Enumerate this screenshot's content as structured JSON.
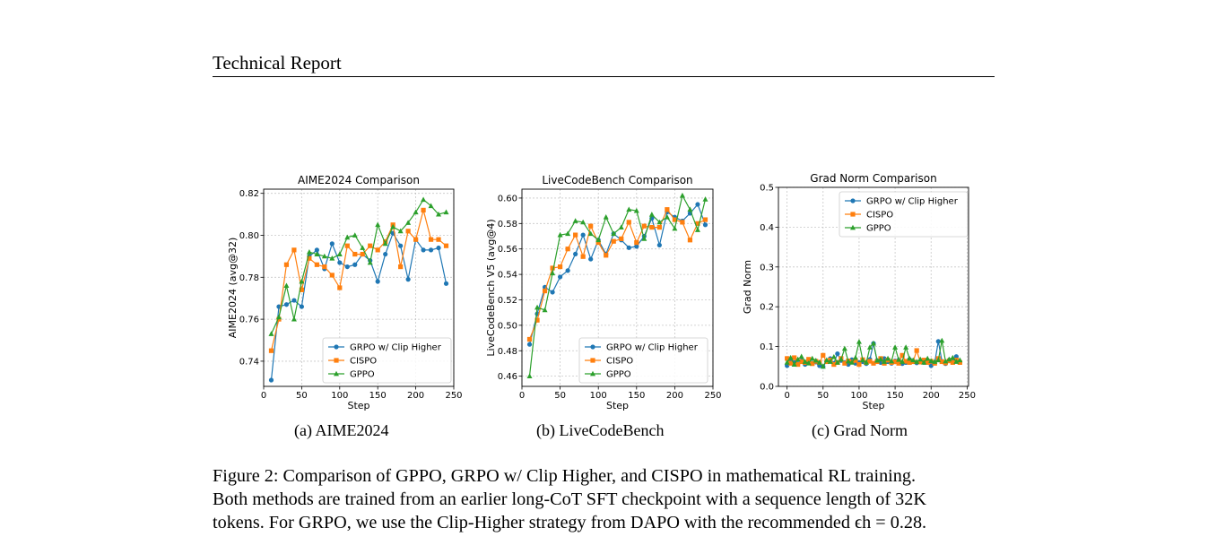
{
  "header": {
    "title": "Technical Report"
  },
  "colors": {
    "grpo": "#1f77b4",
    "cispo": "#ff7f0e",
    "gppo": "#2ca02c"
  },
  "chart_data": [
    {
      "type": "line",
      "title": "AIME2024 Comparison",
      "xlabel": "Step",
      "ylabel": "AIME2024 (avg@32)",
      "xlim": [
        0,
        250
      ],
      "ylim": [
        0.728,
        0.822
      ],
      "xticks": [
        0,
        50,
        100,
        150,
        200,
        250
      ],
      "yticks": [
        0.74,
        0.76,
        0.78,
        0.8,
        0.82
      ],
      "ytick_labels": [
        "0.74",
        "0.76",
        "0.78",
        "0.80",
        "0.82"
      ],
      "grid": true,
      "legend_position": "lower-right",
      "caption": "(a)  AIME2024",
      "series": [
        {
          "name": "GRPO w/ Clip Higher",
          "marker": "circle",
          "x": [
            10,
            20,
            30,
            40,
            50,
            60,
            70,
            80,
            90,
            100,
            110,
            120,
            130,
            140,
            150,
            160,
            170,
            180,
            190,
            200,
            210,
            220,
            230,
            240
          ],
          "y": [
            0.731,
            0.766,
            0.767,
            0.769,
            0.766,
            0.79,
            0.793,
            0.784,
            0.796,
            0.787,
            0.785,
            0.786,
            0.791,
            0.788,
            0.778,
            0.791,
            0.801,
            0.795,
            0.779,
            0.798,
            0.793,
            0.793,
            0.794,
            0.777
          ]
        },
        {
          "name": "CISPO",
          "marker": "square",
          "x": [
            10,
            20,
            30,
            40,
            50,
            60,
            70,
            80,
            90,
            100,
            110,
            120,
            130,
            140,
            150,
            160,
            170,
            180,
            190,
            200,
            210,
            220,
            230,
            240
          ],
          "y": [
            0.745,
            0.76,
            0.786,
            0.793,
            0.774,
            0.789,
            0.786,
            0.785,
            0.781,
            0.775,
            0.795,
            0.791,
            0.791,
            0.795,
            0.793,
            0.797,
            0.805,
            0.785,
            0.802,
            0.798,
            0.812,
            0.798,
            0.798,
            0.795
          ]
        },
        {
          "name": "GPPO",
          "marker": "triangle",
          "x": [
            10,
            20,
            30,
            40,
            50,
            60,
            70,
            80,
            90,
            100,
            110,
            120,
            130,
            140,
            150,
            160,
            170,
            180,
            190,
            200,
            210,
            220,
            230,
            240
          ],
          "y": [
            0.753,
            0.761,
            0.776,
            0.76,
            0.778,
            0.792,
            0.791,
            0.79,
            0.789,
            0.791,
            0.799,
            0.8,
            0.794,
            0.787,
            0.805,
            0.796,
            0.804,
            0.802,
            0.806,
            0.811,
            0.817,
            0.814,
            0.81,
            0.811
          ]
        }
      ]
    },
    {
      "type": "line",
      "title": "LiveCodeBench Comparison",
      "xlabel": "Step",
      "ylabel": "LiveCodeBench V5 (avg@4)",
      "xlim": [
        0,
        250
      ],
      "ylim": [
        0.452,
        0.607
      ],
      "xticks": [
        0,
        50,
        100,
        150,
        200,
        250
      ],
      "yticks": [
        0.46,
        0.48,
        0.5,
        0.52,
        0.54,
        0.56,
        0.58,
        0.6
      ],
      "ytick_labels": [
        "0.46",
        "0.48",
        "0.50",
        "0.52",
        "0.54",
        "0.56",
        "0.58",
        "0.60"
      ],
      "grid": true,
      "legend_position": "lower-right",
      "caption": "(b)  LiveCodeBench",
      "series": [
        {
          "name": "GRPO w/ Clip Higher",
          "marker": "circle",
          "x": [
            10,
            20,
            30,
            40,
            50,
            60,
            70,
            80,
            90,
            100,
            110,
            120,
            130,
            140,
            150,
            160,
            170,
            180,
            190,
            200,
            210,
            220,
            230,
            240
          ],
          "y": [
            0.485,
            0.509,
            0.53,
            0.526,
            0.538,
            0.543,
            0.556,
            0.571,
            0.552,
            0.567,
            0.556,
            0.572,
            0.567,
            0.561,
            0.562,
            0.57,
            0.584,
            0.563,
            0.589,
            0.585,
            0.582,
            0.588,
            0.595,
            0.579
          ]
        },
        {
          "name": "CISPO",
          "marker": "square",
          "x": [
            10,
            20,
            30,
            40,
            50,
            60,
            70,
            80,
            90,
            100,
            110,
            120,
            130,
            140,
            150,
            160,
            170,
            180,
            190,
            200,
            210,
            220,
            230,
            240
          ],
          "y": [
            0.489,
            0.504,
            0.527,
            0.545,
            0.546,
            0.56,
            0.571,
            0.554,
            0.578,
            0.565,
            0.555,
            0.566,
            0.568,
            0.581,
            0.565,
            0.578,
            0.577,
            0.577,
            0.591,
            0.583,
            0.581,
            0.567,
            0.58,
            0.583
          ]
        },
        {
          "name": "GPPO",
          "marker": "triangle",
          "x": [
            10,
            20,
            30,
            40,
            50,
            60,
            70,
            80,
            90,
            100,
            110,
            120,
            130,
            140,
            150,
            160,
            170,
            180,
            190,
            200,
            210,
            220,
            230,
            240
          ],
          "y": [
            0.46,
            0.514,
            0.512,
            0.541,
            0.571,
            0.572,
            0.582,
            0.581,
            0.572,
            0.567,
            0.585,
            0.572,
            0.577,
            0.591,
            0.59,
            0.568,
            0.587,
            0.581,
            0.585,
            0.576,
            0.602,
            0.591,
            0.575,
            0.599
          ]
        }
      ]
    },
    {
      "type": "line",
      "title": "Grad Norm Comparison",
      "xlabel": "Step",
      "ylabel": "Grad Norm",
      "xlim": [
        -12,
        252
      ],
      "ylim": [
        0,
        0.5
      ],
      "xticks": [
        0,
        50,
        100,
        150,
        200,
        250
      ],
      "yticks": [
        0.0,
        0.1,
        0.2,
        0.3,
        0.4,
        0.5
      ],
      "ytick_labels": [
        "0.0",
        "0.1",
        "0.2",
        "0.3",
        "0.4",
        "0.5"
      ],
      "grid": true,
      "legend_position": "top-right",
      "caption": "(c)  Grad Norm",
      "series": [
        {
          "name": "GRPO w/ Clip Higher",
          "marker": "circle",
          "x": [
            0,
            5,
            10,
            15,
            20,
            25,
            30,
            35,
            40,
            45,
            50,
            55,
            60,
            65,
            70,
            75,
            80,
            85,
            90,
            95,
            100,
            105,
            110,
            115,
            120,
            125,
            130,
            135,
            140,
            145,
            150,
            155,
            160,
            165,
            170,
            175,
            180,
            185,
            190,
            195,
            200,
            205,
            210,
            215,
            220,
            225,
            230,
            235,
            240
          ],
          "y": [
            0.052,
            0.068,
            0.06,
            0.057,
            0.064,
            0.055,
            0.066,
            0.058,
            0.061,
            0.052,
            0.05,
            0.063,
            0.07,
            0.058,
            0.082,
            0.065,
            0.06,
            0.055,
            0.067,
            0.058,
            0.06,
            0.062,
            0.057,
            0.068,
            0.108,
            0.065,
            0.06,
            0.07,
            0.062,
            0.058,
            0.064,
            0.066,
            0.057,
            0.06,
            0.068,
            0.062,
            0.059,
            0.063,
            0.06,
            0.066,
            0.052,
            0.06,
            0.113,
            0.063,
            0.057,
            0.066,
            0.062,
            0.075,
            0.06
          ]
        },
        {
          "name": "CISPO",
          "marker": "square",
          "x": [
            0,
            5,
            10,
            15,
            20,
            25,
            30,
            35,
            40,
            45,
            50,
            55,
            60,
            65,
            70,
            75,
            80,
            85,
            90,
            95,
            100,
            105,
            110,
            115,
            120,
            125,
            130,
            135,
            140,
            145,
            150,
            155,
            160,
            165,
            170,
            175,
            180,
            185,
            190,
            195,
            200,
            205,
            210,
            215,
            220,
            225,
            230,
            235,
            240
          ],
          "y": [
            0.07,
            0.058,
            0.072,
            0.055,
            0.062,
            0.06,
            0.068,
            0.057,
            0.063,
            0.06,
            0.078,
            0.062,
            0.066,
            0.055,
            0.06,
            0.07,
            0.058,
            0.064,
            0.061,
            0.065,
            0.055,
            0.067,
            0.06,
            0.063,
            0.058,
            0.062,
            0.07,
            0.058,
            0.066,
            0.06,
            0.062,
            0.058,
            0.078,
            0.063,
            0.06,
            0.062,
            0.09,
            0.061,
            0.066,
            0.06,
            0.063,
            0.058,
            0.07,
            0.062,
            0.059,
            0.064,
            0.06,
            0.066,
            0.06
          ]
        },
        {
          "name": "GPPO",
          "marker": "triangle",
          "x": [
            0,
            5,
            10,
            15,
            20,
            25,
            30,
            35,
            40,
            45,
            50,
            55,
            60,
            65,
            70,
            75,
            80,
            85,
            90,
            95,
            100,
            105,
            110,
            115,
            120,
            125,
            130,
            135,
            140,
            145,
            150,
            155,
            160,
            165,
            170,
            175,
            180,
            185,
            190,
            195,
            200,
            205,
            210,
            215,
            220,
            225,
            230,
            235,
            240
          ],
          "y": [
            0.06,
            0.072,
            0.055,
            0.068,
            0.075,
            0.062,
            0.058,
            0.07,
            0.065,
            0.06,
            0.05,
            0.066,
            0.062,
            0.074,
            0.06,
            0.068,
            0.095,
            0.063,
            0.06,
            0.072,
            0.112,
            0.066,
            0.06,
            0.098,
            0.108,
            0.065,
            0.068,
            0.062,
            0.07,
            0.063,
            0.098,
            0.067,
            0.062,
            0.098,
            0.07,
            0.066,
            0.062,
            0.068,
            0.06,
            0.07,
            0.064,
            0.062,
            0.066,
            0.115,
            0.063,
            0.068,
            0.072,
            0.062,
            0.066
          ]
        }
      ]
    }
  ],
  "caption": {
    "lines": [
      "Figure 2:  Comparison of GPPO, GRPO w/ Clip Higher, and CISPO in mathematical RL training.",
      "Both methods are trained from an earlier long-CoT SFT checkpoint with a sequence length of 32K",
      "tokens.  For GRPO, we use the Clip-Higher strategy from DAPO with the recommended ϵh = 0.28."
    ]
  }
}
